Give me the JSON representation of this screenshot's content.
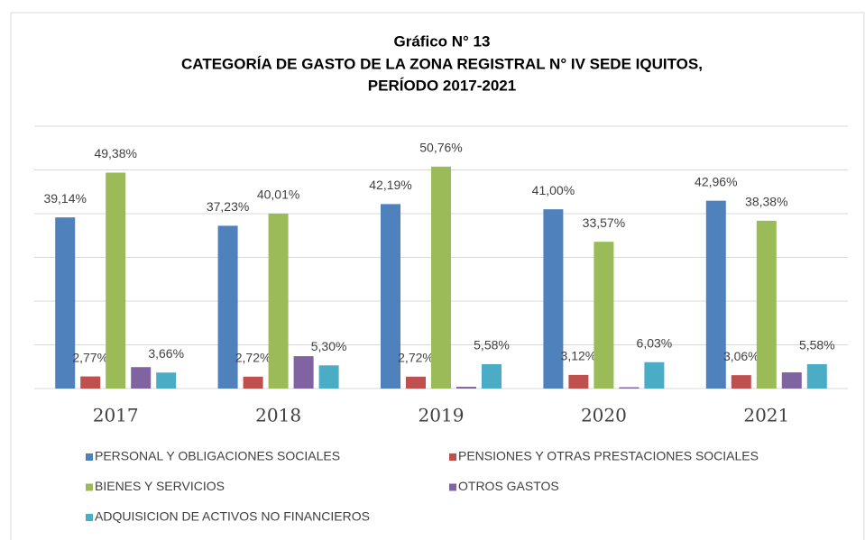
{
  "chart_data": {
    "type": "bar",
    "title": [
      "Gráfico N° 13",
      "CATEGORÍA  DE GASTO DE LA ZONA REGISTRAL  N° IV SEDE IQUITOS,",
      "PERÍODO 2017-2021"
    ],
    "categories": [
      "2017",
      "2018",
      "2019",
      "2020",
      "2021"
    ],
    "ylim": [
      0,
      60
    ],
    "yticks": [
      0,
      10,
      20,
      30,
      40,
      50,
      60
    ],
    "grid": true,
    "series": [
      {
        "name": "PERSONAL Y OBLIGACIONES SOCIALES",
        "color": "#4f81bd",
        "values": [
          39.14,
          37.23,
          42.19,
          41.0,
          42.96
        ],
        "value_labels": [
          "39,14%",
          "37,23%",
          "42,19%",
          "41,00%",
          "42,96%"
        ]
      },
      {
        "name": "PENSIONES Y OTRAS PRESTACIONES SOCIALES",
        "color": "#c0504d",
        "values": [
          2.77,
          2.72,
          2.72,
          3.12,
          3.06
        ],
        "value_labels": [
          "2,77%",
          "2,72%",
          "2,72%",
          "3,12%",
          "3,06%"
        ]
      },
      {
        "name": "BIENES Y SERVICIOS",
        "color": "#9bbb59",
        "values": [
          49.38,
          40.01,
          50.76,
          33.57,
          38.38
        ],
        "value_labels": [
          "49,38%",
          "40,01%",
          "50,76%",
          "33,57%",
          "38,38%"
        ]
      },
      {
        "name": "OTROS GASTOS",
        "color": "#8064a2",
        "values": [
          4.9,
          7.4,
          0.4,
          0.3,
          3.7
        ],
        "value_labels": [
          null,
          null,
          null,
          null,
          null
        ]
      },
      {
        "name": "ADQUISICION DE ACTIVOS NO FINANCIEROS",
        "color": "#4bacc6",
        "values": [
          3.66,
          5.3,
          5.58,
          6.03,
          5.58
        ],
        "value_labels": [
          "3,66%",
          "5,30%",
          "5,58%",
          "6,03%",
          "5,58%"
        ]
      }
    ]
  }
}
